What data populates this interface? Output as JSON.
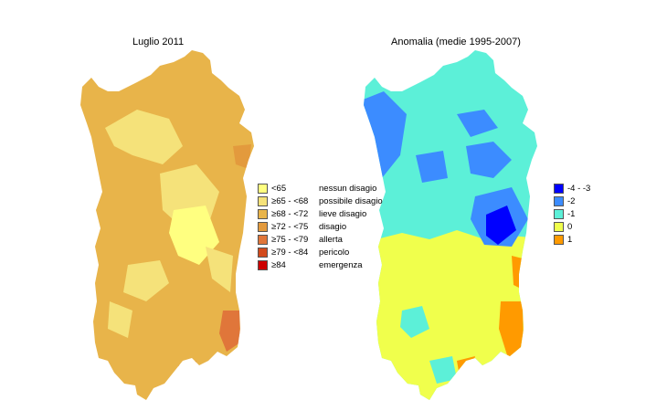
{
  "left_panel": {
    "title": "Luglio 2011",
    "legend": [
      {
        "range": "<65",
        "desc": "nessun disagio",
        "color": "#ffff80"
      },
      {
        "range": "≥65 - <68",
        "desc": "possibile disagio",
        "color": "#f5e27a"
      },
      {
        "range": "≥68 - <72",
        "desc": "lieve disagio",
        "color": "#e8b44a"
      },
      {
        "range": "≥72 - <75",
        "desc": "disagio",
        "color": "#e39a3d"
      },
      {
        "range": "≥75 - <79",
        "desc": "allerta",
        "color": "#e0763a"
      },
      {
        "range": "≥79 - <84",
        "desc": "pericolo",
        "color": "#d24a1c"
      },
      {
        "range": "≥84",
        "desc": "emergenza",
        "color": "#cc0000"
      }
    ]
  },
  "right_panel": {
    "title": "Anomalia (medie 1995-2007)",
    "legend": [
      {
        "range": "-4 - -3",
        "color": "#0000ff"
      },
      {
        "range": "-2",
        "color": "#3c8cff"
      },
      {
        "range": "-1",
        "color": "#5cf0d8"
      },
      {
        "range": "0",
        "color": "#f0ff4c"
      },
      {
        "range": "1",
        "color": "#ff9a00"
      }
    ]
  }
}
